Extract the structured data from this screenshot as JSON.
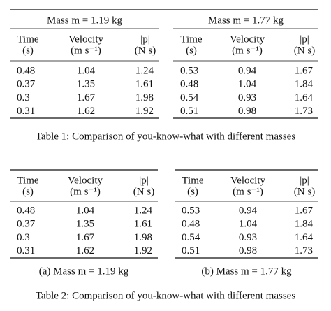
{
  "table1": {
    "groups": [
      {
        "title": "Mass m = 1.19 kg",
        "header": [
          [
            "Time",
            "(s)"
          ],
          [
            "Velocity",
            "(m s⁻¹)"
          ],
          [
            "|p|",
            "(N s)"
          ]
        ],
        "rows": [
          [
            "0.48",
            "1.04",
            "1.24"
          ],
          [
            "0.37",
            "1.35",
            "1.61"
          ],
          [
            "0.3",
            "1.67",
            "1.98"
          ],
          [
            "0.31",
            "1.62",
            "1.92"
          ]
        ]
      },
      {
        "title": "Mass m = 1.77 kg",
        "header": [
          [
            "Time",
            "(s)"
          ],
          [
            "Velocity",
            "(m s⁻¹)"
          ],
          [
            "|p|",
            "(N s)"
          ]
        ],
        "rows": [
          [
            "0.53",
            "0.94",
            "1.67"
          ],
          [
            "0.48",
            "1.04",
            "1.84"
          ],
          [
            "0.54",
            "0.93",
            "1.64"
          ],
          [
            "0.51",
            "0.98",
            "1.73"
          ]
        ]
      }
    ],
    "caption": "Table 1: Comparison of you-know-what with different masses"
  },
  "table2": {
    "subtables": [
      {
        "header": [
          [
            "Time",
            "(s)"
          ],
          [
            "Velocity",
            "(m s⁻¹)"
          ],
          [
            "|p|",
            "(N s)"
          ]
        ],
        "rows": [
          [
            "0.48",
            "1.04",
            "1.24"
          ],
          [
            "0.37",
            "1.35",
            "1.61"
          ],
          [
            "0.3",
            "1.67",
            "1.98"
          ],
          [
            "0.31",
            "1.62",
            "1.92"
          ]
        ],
        "caption": "(a) Mass m = 1.19 kg"
      },
      {
        "header": [
          [
            "Time",
            "(s)"
          ],
          [
            "Velocity",
            "(m s⁻¹)"
          ],
          [
            "|p|",
            "(N s)"
          ]
        ],
        "rows": [
          [
            "0.53",
            "0.94",
            "1.67"
          ],
          [
            "0.48",
            "1.04",
            "1.84"
          ],
          [
            "0.54",
            "0.93",
            "1.64"
          ],
          [
            "0.51",
            "0.98",
            "1.73"
          ]
        ],
        "caption": "(b) Mass m = 1.77 kg"
      }
    ],
    "caption": "Table 2: Comparison of you-know-what with different masses"
  }
}
